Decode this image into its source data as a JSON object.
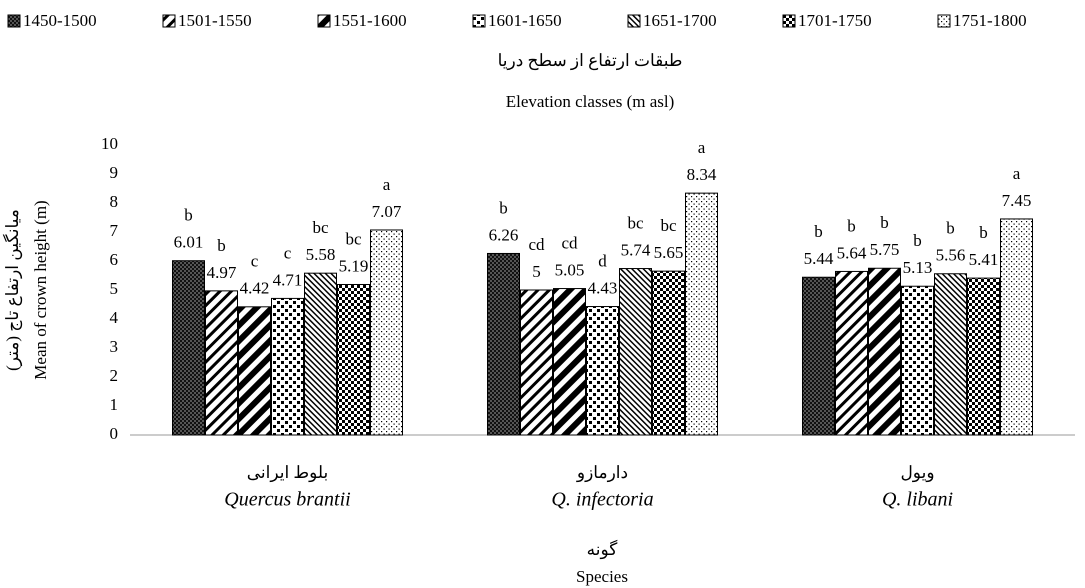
{
  "chart_data": {
    "type": "bar",
    "legend_title_fa": "طبقات ارتفاع از سطح دریا",
    "legend_title": "Elevation classes (m asl)",
    "y_label": "Mean of crown height (m)",
    "y_label_fa": "میانگین ارتفاع تاج (متر)",
    "x_label": "Species",
    "x_label_fa": "گونه",
    "categories": [
      "Quercus brantii",
      "Q. infectoria",
      "Q. libani"
    ],
    "categories_fa": [
      "بلوط ایرانی",
      "دارمازو",
      "ویول"
    ],
    "legend": "top",
    "ylim": [
      0,
      10
    ],
    "yticks": [
      0,
      1,
      2,
      3,
      4,
      5,
      6,
      7,
      8,
      9,
      10
    ],
    "grid": false,
    "series": [
      {
        "name": "1450-1500",
        "color": "#000000",
        "pattern": "dense-dots",
        "values": [
          6.01,
          6.26,
          5.44
        ],
        "letters": [
          "b",
          "b",
          "b"
        ]
      },
      {
        "name": "1501-1550",
        "color": "#000000",
        "pattern": "diag-thin",
        "values": [
          4.97,
          5,
          5.64
        ],
        "letters": [
          "b",
          "cd",
          "b"
        ]
      },
      {
        "name": "1551-1600",
        "color": "#000000",
        "pattern": "diag-thick",
        "values": [
          4.42,
          5.05,
          5.75
        ],
        "letters": [
          "c",
          "cd",
          "b"
        ]
      },
      {
        "name": "1601-1650",
        "color": "#000000",
        "pattern": "blobs",
        "values": [
          4.71,
          4.43,
          5.13
        ],
        "letters": [
          "c",
          "d",
          "b"
        ]
      },
      {
        "name": "1651-1700",
        "color": "#000000",
        "pattern": "diag-fine",
        "values": [
          5.58,
          5.74,
          5.56
        ],
        "letters": [
          "bc",
          "bc",
          "b"
        ]
      },
      {
        "name": "1701-1750",
        "color": "#000000",
        "pattern": "checker",
        "values": [
          5.19,
          5.65,
          5.41
        ],
        "letters": [
          "bc",
          "bc",
          "b"
        ]
      },
      {
        "name": "1751-1800",
        "color": "#000000",
        "pattern": "sparse-dots",
        "values": [
          7.07,
          8.34,
          7.45
        ],
        "letters": [
          "a",
          "a",
          "a"
        ]
      }
    ]
  }
}
